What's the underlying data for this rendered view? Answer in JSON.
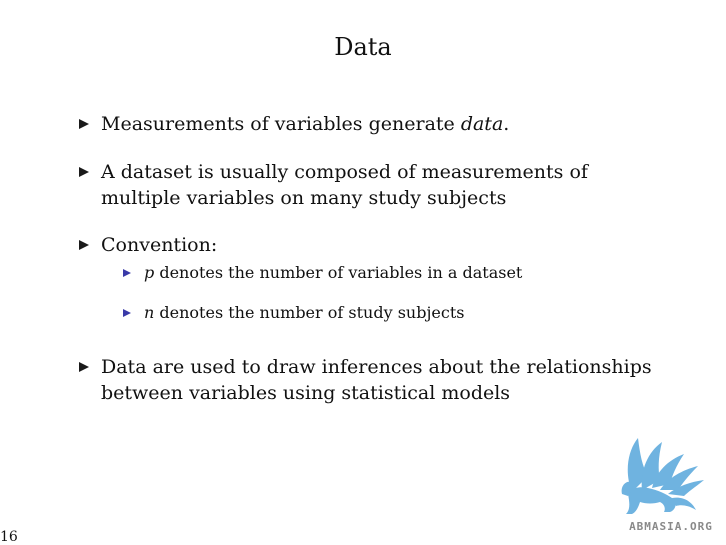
{
  "slide": {
    "title": "Data",
    "page_number": "16",
    "bullets": [
      {
        "pre": "Measurements of variables generate ",
        "em": "data",
        "post": "."
      },
      {
        "line1": "A dataset is usually composed of measurements of",
        "line2": "multiple variables on many study subjects"
      },
      {
        "text": "Convention:"
      },
      {
        "line1": "Data are used to draw inferences about the relationships",
        "line2": "between variables using statistical models"
      }
    ],
    "sub_bullets": [
      {
        "em": "p",
        "post": " denotes the number of variables in a dataset"
      },
      {
        "em": "n",
        "post": " denotes the number of study subjects"
      }
    ],
    "logo_text": "ABMASIA.ORG"
  },
  "colors": {
    "text": "#111111",
    "sub_bullet": "#3a3aa8",
    "logo_blue": "#6fb3e0"
  },
  "icons": {
    "bullet": "triangle-right",
    "logo": "griffin-logo"
  }
}
